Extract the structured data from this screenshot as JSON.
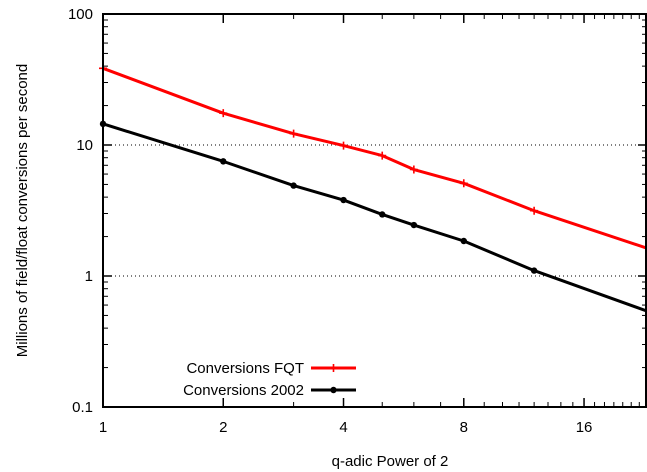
{
  "chart_data": {
    "type": "line",
    "title": "",
    "xlabel": "q-adic Power of 2",
    "ylabel": "Millions of field/float conversions per second",
    "x_scale": "log2",
    "y_scale": "log10",
    "xlim": [
      1,
      23
    ],
    "ylim": [
      0.1,
      100
    ],
    "x_ticks": [
      1,
      2,
      4,
      8,
      16
    ],
    "x_tick_labels": [
      "1",
      "2",
      "4",
      "8",
      "16"
    ],
    "y_ticks": [
      0.1,
      1,
      10,
      100
    ],
    "y_tick_labels": [
      "0.1",
      "1",
      "10",
      "100"
    ],
    "grid": "horizontal dotted at 1 and 10",
    "legend_position": "bottom-left",
    "series": [
      {
        "name": "Conversions FQT",
        "color": "#ff0000",
        "marker": "plus",
        "x": [
          1,
          2,
          3,
          4,
          5,
          6,
          8,
          12,
          23
        ],
        "y": [
          38.5,
          17.5,
          12.2,
          9.9,
          8.3,
          6.5,
          5.1,
          3.15,
          1.63
        ]
      },
      {
        "name": "Conversions 2002",
        "color": "#000000",
        "marker": "circle",
        "x": [
          1,
          2,
          3,
          4,
          5,
          6,
          8,
          12,
          23
        ],
        "y": [
          14.5,
          7.5,
          4.9,
          3.8,
          2.95,
          2.45,
          1.85,
          1.1,
          0.54
        ]
      }
    ]
  }
}
